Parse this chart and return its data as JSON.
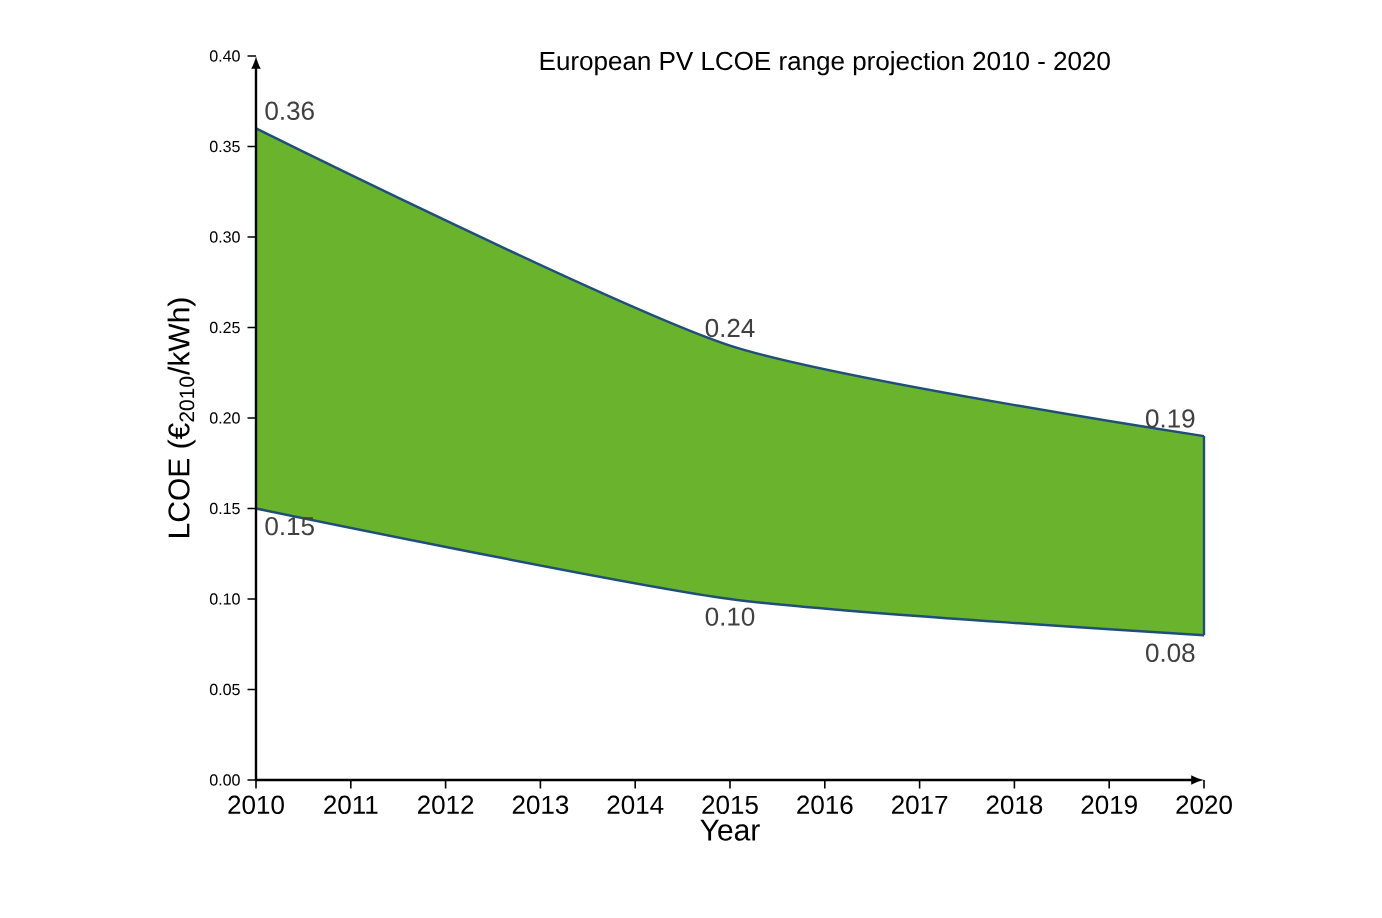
{
  "chart_data": {
    "type": "area",
    "title": "European PV LCOE range projection 2010 - 2020",
    "xlabel": "Year",
    "ylabel": "LCOE (€$_{2010}$/kWh)",
    "x": [
      2010,
      2015,
      2020
    ],
    "series": [
      {
        "color": "#6ab42d",
        "values": [
          0.36,
          0.24,
          0.19
        ],
        "value_labels": [
          "0.36",
          "0.24",
          "0.19"
        ]
      },
      {
        "color": "#ffffff",
        "values": [
          0.15,
          0.1,
          0.08
        ],
        "value_labels": [
          "0.15",
          "0.10",
          "0.08"
        ]
      }
    ],
    "xlim": [
      2010,
      2020
    ],
    "xticks": [
      2010,
      2011,
      2012,
      2013,
      2014,
      2015,
      2016,
      2017,
      2018,
      2019,
      2020
    ],
    "ylim": [
      0,
      0.4
    ],
    "yticks": [
      {
        "value": 0,
        "label": "0.00"
      },
      {
        "value": 0.05,
        "label": "0.05"
      },
      {
        "value": 0.1,
        "label": "0.10"
      },
      {
        "value": 0.15,
        "label": "0.15"
      },
      {
        "value": 0.2,
        "label": "0.20"
      },
      {
        "value": 0.25,
        "label": "0.25"
      },
      {
        "value": 0.3,
        "label": "0.30"
      },
      {
        "value": 0.35,
        "label": "0.35"
      },
      {
        "value": 0.4,
        "label": "0.40"
      }
    ],
    "grid": false
  }
}
